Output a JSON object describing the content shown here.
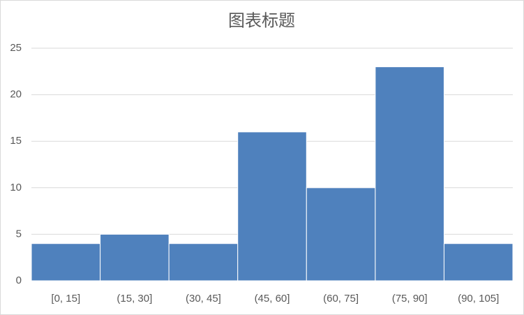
{
  "chart_data": {
    "type": "histogram",
    "title": "图表标题",
    "categories": [
      "[0, 15]",
      "(15, 30]",
      "(30, 45]",
      "(45, 60]",
      "(60, 75]",
      "(75, 90]",
      "(90, 105]"
    ],
    "values": [
      4,
      5,
      4,
      16,
      10,
      23,
      4
    ],
    "color": "#4f81bd",
    "ylim": [
      0,
      25
    ],
    "yticks": [
      0,
      5,
      10,
      15,
      20,
      25
    ],
    "grid": true
  }
}
